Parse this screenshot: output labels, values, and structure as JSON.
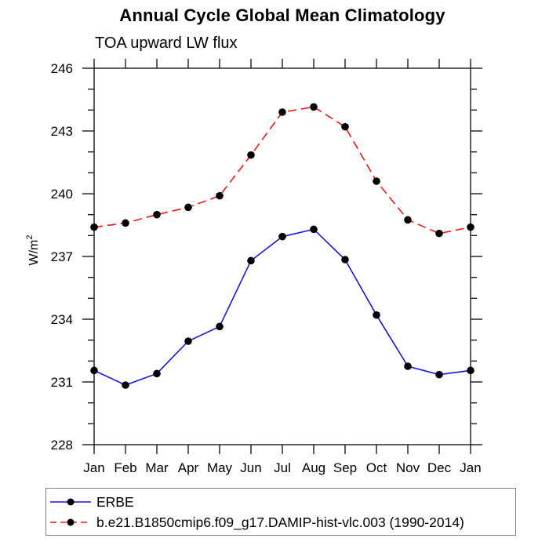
{
  "chart_data": {
    "type": "line",
    "title": "Annual Cycle Global Mean Climatology",
    "subtitle": "TOA upward LW flux",
    "ylabel": "W/m²",
    "ylabel_base": "W/m",
    "ylabel_sup": "2",
    "x_categories": [
      "Jan",
      "Feb",
      "Mar",
      "Apr",
      "May",
      "Jun",
      "Jul",
      "Aug",
      "Sep",
      "Oct",
      "Nov",
      "Dec",
      "Jan"
    ],
    "ylim": [
      228,
      246
    ],
    "ytick_major_step": 3,
    "ytick_minor_step": 1,
    "ytick_labels": [
      "228",
      "231",
      "234",
      "237",
      "240",
      "243",
      "246"
    ],
    "grid": false,
    "legend_position": "bottom-left-box",
    "series": [
      {
        "name": "ERBE",
        "color": "#1414e6",
        "line_style": "solid",
        "marker": "filled-circle",
        "marker_color": "#000000",
        "values": [
          231.55,
          230.85,
          231.4,
          232.95,
          233.65,
          236.8,
          237.95,
          238.3,
          236.85,
          234.2,
          231.75,
          231.35,
          231.55
        ]
      },
      {
        "name": "b.e21.B1850cmip6.f09_g17.DAMIP-hist-vlc.003 (1990-2014)",
        "color": "#f51414",
        "line_style": "dashed",
        "marker": "filled-circle",
        "marker_color": "#000000",
        "values": [
          238.4,
          238.6,
          239.0,
          239.35,
          239.9,
          241.85,
          243.9,
          244.15,
          243.2,
          240.6,
          238.75,
          238.1,
          238.4
        ]
      }
    ]
  }
}
